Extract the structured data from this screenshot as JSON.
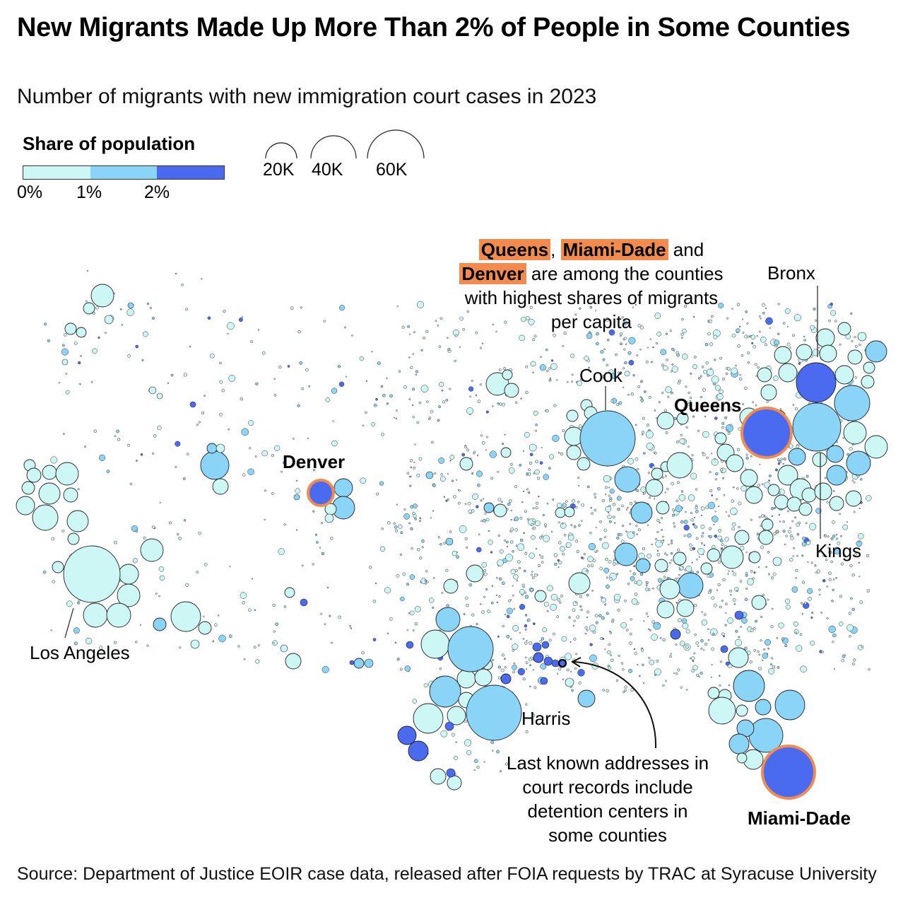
{
  "title": "New Migrants Made Up More Than 2% of People in Some Counties",
  "subtitle": "Number of migrants with new immigration court cases in 2023",
  "legend": {
    "color_title": "Share of population",
    "color_ticks": [
      "0%",
      "1%",
      "2%"
    ],
    "colors": [
      "#cdf7f4",
      "#8ad4f8",
      "#4a6af0"
    ],
    "size_labels": [
      "20K",
      "40K",
      "60K"
    ],
    "size_values": [
      20000,
      40000,
      60000
    ]
  },
  "colors": {
    "highlight": "#f38b4f",
    "stroke": "#222222"
  },
  "labels": {
    "los_angeles": "Los Angeles",
    "denver": "Denver",
    "cook": "Cook",
    "queens": "Queens",
    "bronx": "Bronx",
    "kings": "Kings",
    "harris": "Harris",
    "miami_dade": "Miami-Dade"
  },
  "annotation_top": {
    "hl1": "Queens",
    "sep1": ",",
    "hl2": "Miami-Dade",
    "and": "and",
    "hl3": "Denver",
    "rest1": "are among the counties",
    "rest2": "with highest shares of migrants",
    "rest3": "per capita"
  },
  "annotation_bottom": {
    "line1": "Last known addresses in",
    "line2": "court records include",
    "line3": "detention centers in",
    "line4": "some counties"
  },
  "source": "Source: Department of Justice EOIR case data, released after FOIA requests by TRAC at Syracuse University",
  "chart_data": {
    "type": "proportional-symbol-map",
    "measure": "Number of migrants with new immigration court cases in 2023",
    "color_variable": "Share of population",
    "color_bins": [
      "0-1%",
      "1-2%",
      "2%+"
    ],
    "highlighted_counties": [
      {
        "name": "Queens",
        "migrants": 47000,
        "share_bin": "2%+"
      },
      {
        "name": "Miami-Dade",
        "migrants": 42000,
        "share_bin": "2%+"
      },
      {
        "name": "Denver",
        "migrants": 12000,
        "share_bin": "2%+"
      }
    ],
    "labeled_counties": [
      {
        "name": "Los Angeles",
        "migrants": 63000,
        "share_bin": "0-1%"
      },
      {
        "name": "Cook",
        "migrants": 52000,
        "share_bin": "1-2%"
      },
      {
        "name": "Harris",
        "migrants": 56000,
        "share_bin": "1-2%"
      },
      {
        "name": "Kings",
        "migrants": 38000,
        "share_bin": "1-2%"
      },
      {
        "name": "Bronx",
        "migrants": 26000,
        "share_bin": "2%+"
      }
    ]
  }
}
